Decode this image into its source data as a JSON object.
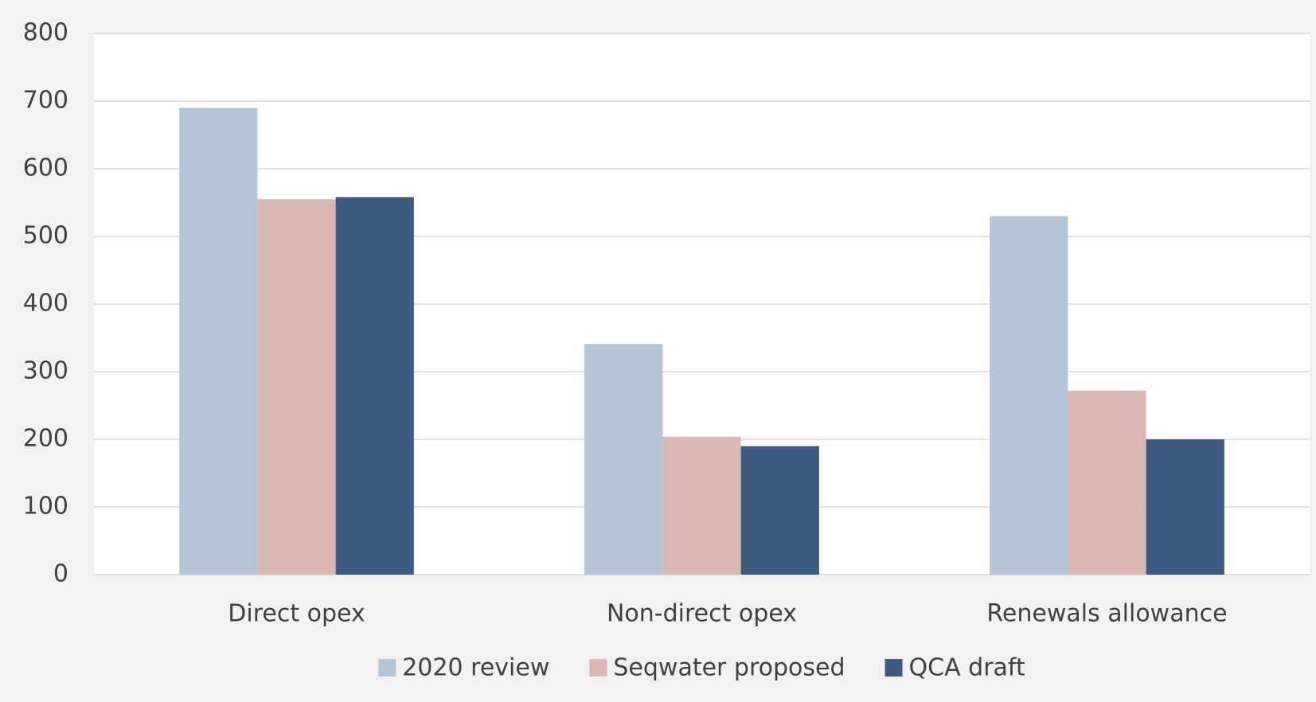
{
  "chart_data": {
    "type": "bar",
    "categories": [
      "Direct opex",
      "Non-direct opex",
      "Renewals allowance"
    ],
    "series": [
      {
        "name": "2020 review",
        "color": "#b3c5d7",
        "values": [
          690,
          341,
          530
        ]
      },
      {
        "name": "Seqwater proposed",
        "color": "#dbb8b3",
        "values": [
          555,
          204,
          272
        ]
      },
      {
        "name": "QCA draft",
        "color": "#3e5a80",
        "values": [
          558,
          190,
          200
        ]
      }
    ],
    "ylim": [
      0,
      800
    ],
    "yticks": [
      0,
      100,
      200,
      300,
      400,
      500,
      600,
      700,
      800
    ],
    "grid": true,
    "legend": "bottom"
  }
}
